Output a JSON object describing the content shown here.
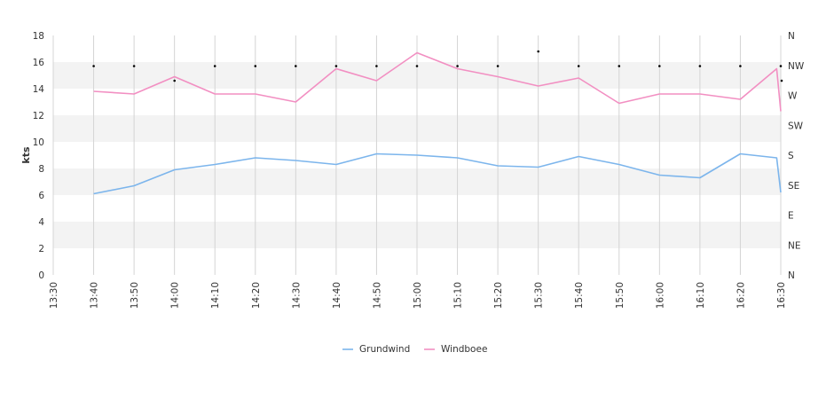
{
  "chart_data": {
    "type": "line",
    "ylabel": "kts",
    "ylim": [
      0,
      18
    ],
    "y_ticks": [
      "0",
      "2",
      "4",
      "6",
      "8",
      "10",
      "12",
      "14",
      "16",
      "18"
    ],
    "x_ticks": [
      "13:30",
      "13:40",
      "13:50",
      "14:00",
      "14:10",
      "14:20",
      "14:30",
      "14:40",
      "14:50",
      "15:00",
      "15:10",
      "15:20",
      "15:30",
      "15:40",
      "15:50",
      "16:00",
      "16:10",
      "16:20",
      "16:30"
    ],
    "right_ticks": [
      "N",
      "NE",
      "E",
      "SE",
      "S",
      "SW",
      "W",
      "NW",
      "N"
    ],
    "x": [
      "13:40",
      "13:50",
      "14:00",
      "14:10",
      "14:20",
      "14:30",
      "14:40",
      "14:50",
      "15:00",
      "15:10",
      "15:20",
      "15:30",
      "15:40",
      "15:50",
      "16:00",
      "16:10",
      "16:20",
      "16:29",
      "16:30"
    ],
    "series": [
      {
        "name": "Grundwind",
        "color": "#7cb5ec",
        "values": [
          6.1,
          6.7,
          7.9,
          8.3,
          8.8,
          8.6,
          8.3,
          9.1,
          9.0,
          8.8,
          8.2,
          8.1,
          8.9,
          8.3,
          7.5,
          7.3,
          9.1,
          8.8,
          6.2
        ]
      },
      {
        "name": "Windboee",
        "color": "#f28fc2",
        "values": [
          13.8,
          13.6,
          14.9,
          13.6,
          13.6,
          13.0,
          15.5,
          14.6,
          16.7,
          15.5,
          14.9,
          14.2,
          14.8,
          12.9,
          13.6,
          13.6,
          13.2,
          15.5,
          12.3
        ]
      }
    ],
    "direction_series": {
      "color": "#000000",
      "x": [
        "13:40",
        "13:50",
        "14:00",
        "14:10",
        "14:20",
        "14:30",
        "14:40",
        "14:50",
        "15:00",
        "15:10",
        "15:20",
        "15:30",
        "15:40",
        "15:50",
        "16:00",
        "16:10",
        "16:20",
        "16:30",
        "16:30"
      ],
      "values": [
        15.7,
        15.7,
        14.6,
        15.7,
        15.7,
        15.7,
        15.7,
        15.7,
        15.7,
        15.7,
        15.7,
        16.8,
        15.7,
        15.7,
        15.7,
        15.7,
        15.7,
        15.7,
        14.6
      ]
    },
    "grid": true,
    "band_color": "#f3f3f3",
    "legend_position": "bottom-center"
  }
}
